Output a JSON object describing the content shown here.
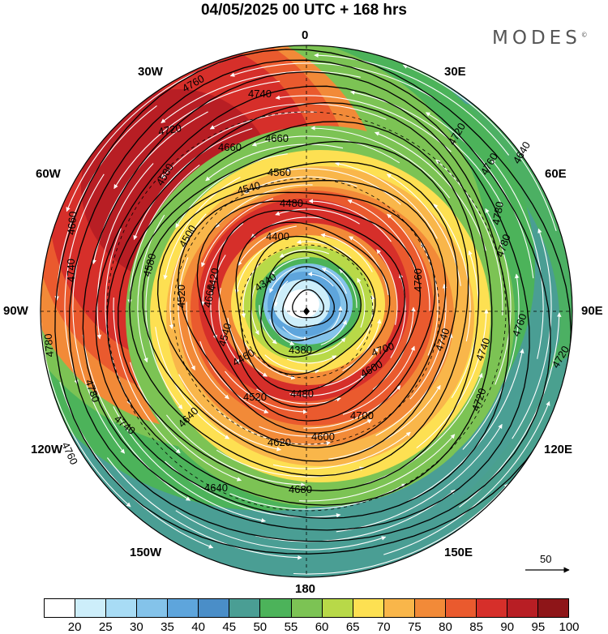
{
  "title": "04/05/2025  00 UTC  + 168 hrs",
  "brand": {
    "name": "MODES",
    "mark": "©"
  },
  "longitude_labels": {
    "n": "0",
    "ne30": "30E",
    "ne60": "60E",
    "e": "90E",
    "se120": "120E",
    "se150": "150E",
    "s": "180",
    "sw150": "150W",
    "sw120": "120W",
    "w": "90W",
    "nw60": "60W",
    "nw30": "30W"
  },
  "contour_labels": [
    "4760",
    "4740",
    "4660",
    "4660",
    "4720",
    "4560",
    "4580",
    "4540",
    "4480",
    "4400",
    "4500",
    "4580",
    "4340",
    "4420",
    "4520",
    "4660",
    "4380",
    "4600",
    "4540",
    "4460",
    "4480",
    "4520",
    "4640",
    "4620",
    "4600",
    "4700",
    "4740",
    "4760",
    "4700",
    "4720",
    "4720",
    "4740",
    "4760",
    "4780",
    "4780",
    "4760",
    "4720",
    "4640",
    "4660",
    "4740",
    "4780",
    "4760",
    "4780",
    "4740",
    "4640",
    "4680"
  ],
  "colorbar": {
    "ticks": [
      "20",
      "25",
      "30",
      "35",
      "40",
      "45",
      "50",
      "55",
      "60",
      "65",
      "70",
      "75",
      "80",
      "85",
      "90",
      "95",
      "100"
    ],
    "colors": [
      "#ffffff",
      "#cdeefa",
      "#a8dcf5",
      "#84c3ea",
      "#5ea5dc",
      "#4a8ec8",
      "#4a9e94",
      "#4cb35a",
      "#7cc354",
      "#b8d948",
      "#fde052",
      "#f9b64a",
      "#f28a38",
      "#ea5a2e",
      "#d62f2a",
      "#b81e24",
      "#8e1518"
    ]
  },
  "reference_vector": {
    "label": "50"
  }
}
